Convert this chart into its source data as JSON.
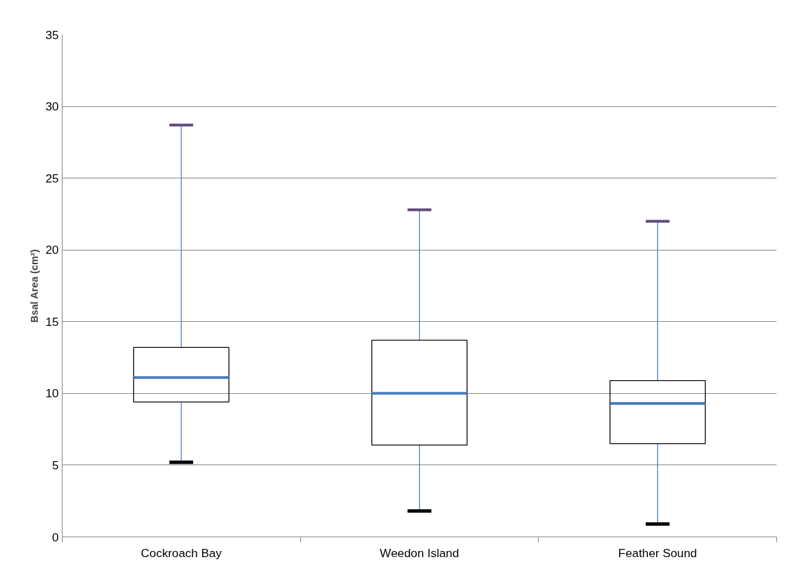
{
  "chart_data": {
    "type": "box",
    "ylabel": "Bsal Area (cm²)",
    "categories": [
      "Cockroach Bay",
      "Weedon Island",
      "Feather Sound"
    ],
    "series": [
      {
        "boxes": [
          {
            "low": 5.2,
            "q1": 9.4,
            "median": 11.1,
            "q3": 13.2,
            "high": 28.7
          },
          {
            "low": 1.8,
            "q1": 6.4,
            "median": 10.0,
            "q3": 13.7,
            "high": 22.8
          },
          {
            "low": 0.9,
            "q1": 6.5,
            "median": 9.3,
            "q3": 10.9,
            "high": 22.0
          }
        ]
      }
    ],
    "ylim": [
      0,
      35
    ],
    "yticks": [
      0,
      5,
      10,
      15,
      20,
      25,
      30,
      35
    ],
    "grid": "y"
  }
}
